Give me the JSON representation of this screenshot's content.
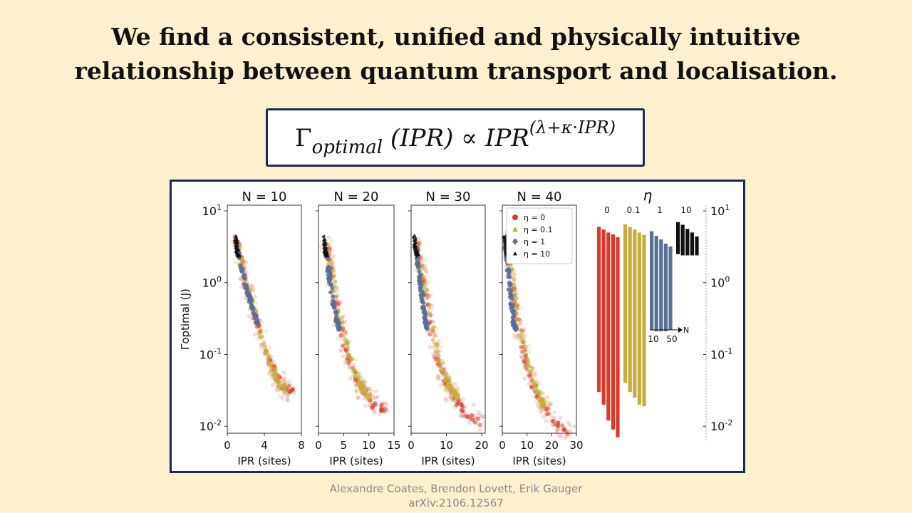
{
  "slide": {
    "headline_line1": "We find a consistent, unified and physically intuitive",
    "headline_line2": "relationship between quantum transport and localisation.",
    "formula": {
      "gamma": "Γ",
      "sub": "optimal",
      "arg": " (IPR) ∝ ",
      "base": "IPR",
      "exponent": "(λ+κ·IPR)"
    },
    "credit_authors": "Alexandre Coates, Brendon Lovett, Erik Gauger",
    "credit_arxiv": "arXiv:2106.12567"
  },
  "colors": {
    "eta0": "#d93b2b",
    "eta01": "#c5ae3f",
    "eta1": "#5a6f95",
    "eta10": "#111111",
    "border": "#1c2a5a",
    "background": "#fdf0cf"
  },
  "chart_data": {
    "type": "scatter",
    "ylabel": "Γoptimal (J)",
    "yscale": "log",
    "ylim": [
      0.008,
      12
    ],
    "ytick_labels": [
      "10^1",
      "10^0",
      "10^-1",
      "10^-2"
    ],
    "panels": [
      {
        "title": "N = 10",
        "xlabel": "IPR (sites)",
        "xlim": [
          0,
          8
        ],
        "xticks": [
          0,
          4,
          8
        ],
        "series": [
          {
            "name": "η = 0",
            "points": [
              [
                1.0,
                4.0
              ],
              [
                1.5,
                2.0
              ],
              [
                2.2,
                0.8
              ],
              [
                3.0,
                0.35
              ],
              [
                4.0,
                0.12
              ],
              [
                5.0,
                0.06
              ],
              [
                6.0,
                0.035
              ],
              [
                7.0,
                0.03
              ]
            ]
          },
          {
            "name": "η = 0.1",
            "points": [
              [
                1.0,
                4.0
              ],
              [
                1.8,
                1.3
              ],
              [
                2.8,
                0.45
              ],
              [
                3.8,
                0.15
              ],
              [
                4.8,
                0.065
              ],
              [
                5.6,
                0.04
              ],
              [
                6.3,
                0.03
              ]
            ]
          },
          {
            "name": "η = 1",
            "points": [
              [
                1.0,
                3.5
              ],
              [
                1.5,
                1.6
              ],
              [
                2.0,
                0.9
              ],
              [
                2.5,
                0.55
              ],
              [
                3.0,
                0.35
              ],
              [
                3.3,
                0.25
              ]
            ]
          },
          {
            "name": "η = 10",
            "points": [
              [
                0.9,
                4.5
              ],
              [
                1.0,
                3.2
              ],
              [
                1.1,
                2.6
              ],
              [
                1.3,
                2.3
              ]
            ]
          }
        ]
      },
      {
        "title": "N = 20",
        "xlabel": "IPR (sites)",
        "xlim": [
          0,
          15
        ],
        "xticks": [
          0,
          5,
          10,
          15
        ],
        "series": [
          {
            "name": "η = 0",
            "points": [
              [
                1.5,
                4.0
              ],
              [
                2.5,
                1.5
              ],
              [
                3.5,
                0.5
              ],
              [
                5.0,
                0.15
              ],
              [
                7.0,
                0.05
              ],
              [
                9.0,
                0.03
              ],
              [
                11.0,
                0.02
              ],
              [
                13.5,
                0.017
              ]
            ]
          },
          {
            "name": "η = 0.1",
            "points": [
              [
                1.5,
                4.0
              ],
              [
                2.8,
                1.2
              ],
              [
                4.2,
                0.35
              ],
              [
                6.0,
                0.1
              ],
              [
                7.8,
                0.045
              ],
              [
                9.2,
                0.03
              ],
              [
                10.2,
                0.025
              ]
            ]
          },
          {
            "name": "η = 1",
            "points": [
              [
                1.2,
                3.5
              ],
              [
                1.8,
                1.8
              ],
              [
                2.4,
                0.9
              ],
              [
                3.0,
                0.5
              ],
              [
                3.6,
                0.3
              ],
              [
                4.2,
                0.22
              ]
            ]
          },
          {
            "name": "η = 10",
            "points": [
              [
                1.0,
                4.5
              ],
              [
                1.2,
                3.2
              ],
              [
                1.4,
                2.6
              ],
              [
                1.6,
                2.4
              ]
            ]
          }
        ]
      },
      {
        "title": "N = 30",
        "xlabel": "IPR (sites)",
        "xlim": [
          0,
          21
        ],
        "xticks": [
          0,
          10,
          20
        ],
        "series": [
          {
            "name": "η = 0",
            "points": [
              [
                1.5,
                4.0
              ],
              [
                3.0,
                1.3
              ],
              [
                5.0,
                0.35
              ],
              [
                7.0,
                0.1
              ],
              [
                10.0,
                0.04
              ],
              [
                13.0,
                0.022
              ],
              [
                16.0,
                0.015
              ],
              [
                20.0,
                0.011
              ]
            ]
          },
          {
            "name": "η = 0.1",
            "points": [
              [
                1.5,
                4.0
              ],
              [
                3.2,
                1.2
              ],
              [
                5.5,
                0.3
              ],
              [
                8.0,
                0.08
              ],
              [
                10.5,
                0.04
              ],
              [
                12.0,
                0.03
              ],
              [
                13.0,
                0.025
              ]
            ]
          },
          {
            "name": "η = 1",
            "points": [
              [
                1.3,
                3.5
              ],
              [
                2.0,
                1.8
              ],
              [
                2.7,
                0.9
              ],
              [
                3.4,
                0.5
              ],
              [
                4.2,
                0.28
              ],
              [
                4.8,
                0.22
              ]
            ]
          },
          {
            "name": "η = 10",
            "points": [
              [
                1.0,
                4.5
              ],
              [
                1.2,
                3.2
              ],
              [
                1.5,
                2.6
              ],
              [
                1.8,
                2.4
              ]
            ]
          }
        ]
      },
      {
        "title": "N = 40",
        "xlabel": "IPR (sites)",
        "xlim": [
          0,
          30
        ],
        "xticks": [
          0,
          10,
          20,
          30
        ],
        "series": [
          {
            "name": "η = 0",
            "points": [
              [
                1.5,
                4.0
              ],
              [
                3.5,
                1.2
              ],
              [
                6.0,
                0.3
              ],
              [
                9.0,
                0.09
              ],
              [
                13.0,
                0.035
              ],
              [
                17.0,
                0.018
              ],
              [
                22.0,
                0.011
              ],
              [
                27.5,
                0.008
              ]
            ]
          },
          {
            "name": "η = 0.1",
            "points": [
              [
                1.5,
                4.0
              ],
              [
                4.0,
                1.0
              ],
              [
                7.0,
                0.25
              ],
              [
                10.0,
                0.08
              ],
              [
                13.5,
                0.035
              ],
              [
                16.0,
                0.022
              ],
              [
                17.5,
                0.018
              ]
            ]
          },
          {
            "name": "η = 1",
            "points": [
              [
                1.3,
                3.5
              ],
              [
                2.2,
                1.8
              ],
              [
                3.0,
                0.9
              ],
              [
                3.8,
                0.5
              ],
              [
                4.6,
                0.28
              ],
              [
                5.3,
                0.22
              ]
            ]
          },
          {
            "name": "η = 10",
            "points": [
              [
                1.0,
                4.5
              ],
              [
                1.3,
                3.2
              ],
              [
                1.6,
                2.6
              ],
              [
                2.0,
                2.4
              ]
            ]
          }
        ]
      }
    ],
    "legend": {
      "placement": "inside N = 40 panel, top-left",
      "entries": [
        "η = 0",
        "η = 0.1",
        "η = 1",
        "η = 10"
      ]
    },
    "range_bars": {
      "title": "η",
      "group_labels": [
        "0",
        "0.1",
        "1",
        "10"
      ],
      "n_axis": {
        "label": "N",
        "tick_labels": [
          "10",
          "50"
        ]
      },
      "groups": [
        {
          "eta": "0",
          "bars": [
            [
              0.03,
              6.0
            ],
            [
              0.02,
              5.5
            ],
            [
              0.012,
              5.0
            ],
            [
              0.009,
              4.7
            ],
            [
              0.007,
              4.3
            ]
          ]
        },
        {
          "eta": "0.1",
          "bars": [
            [
              0.04,
              6.5
            ],
            [
              0.03,
              6.0
            ],
            [
              0.025,
              5.5
            ],
            [
              0.02,
              5.0
            ],
            [
              0.019,
              4.6
            ]
          ]
        },
        {
          "eta": "1",
          "bars": [
            [
              0.22,
              5.2
            ],
            [
              0.21,
              4.5
            ],
            [
              0.21,
              4.0
            ],
            [
              0.21,
              3.5
            ],
            [
              0.22,
              3.2
            ]
          ]
        },
        {
          "eta": "10",
          "bars": [
            [
              2.5,
              7.0
            ],
            [
              2.4,
              6.4
            ],
            [
              2.4,
              5.6
            ],
            [
              2.4,
              5.0
            ],
            [
              2.4,
              4.4
            ]
          ]
        }
      ]
    }
  }
}
